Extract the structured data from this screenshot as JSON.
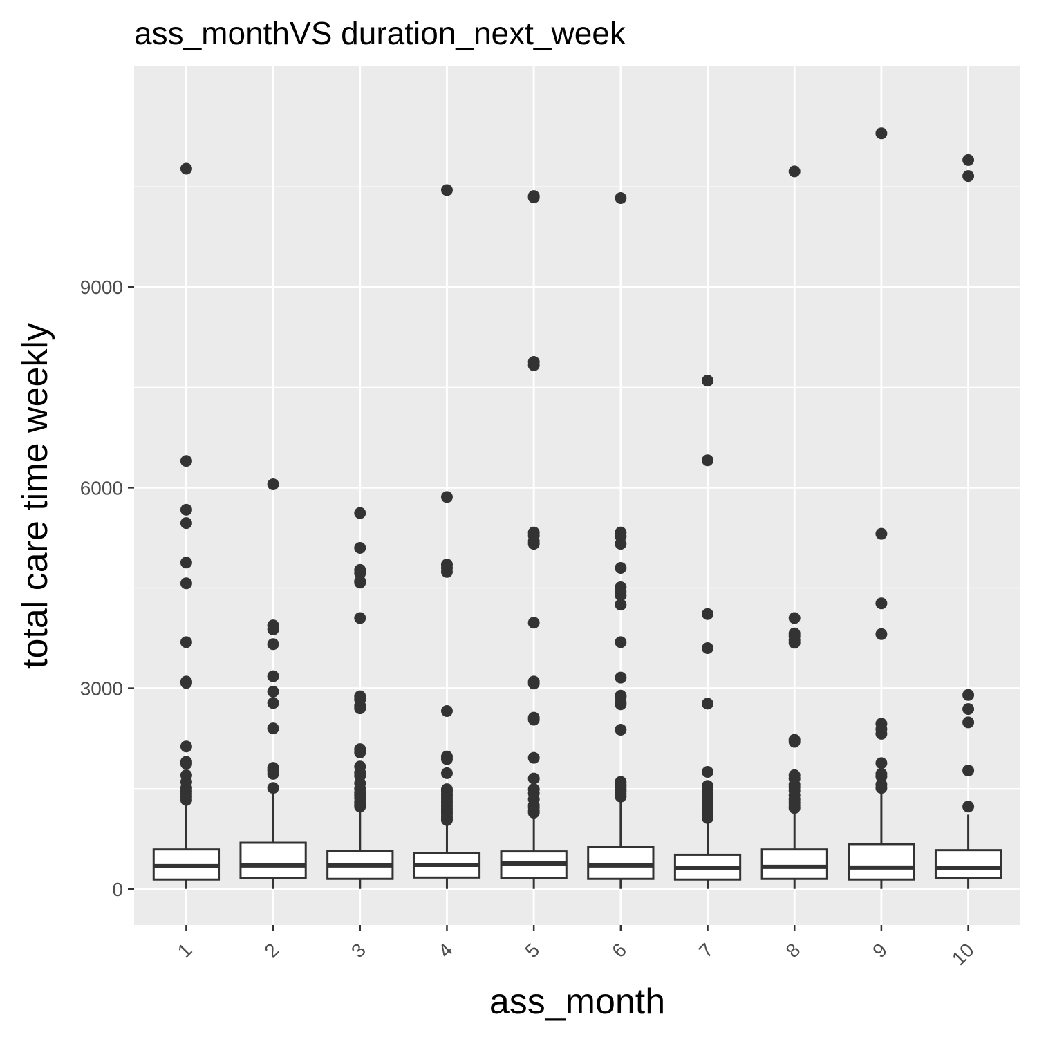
{
  "chart_data": {
    "type": "boxplot",
    "title": "ass_monthVS duration_next_week",
    "xlabel": "ass_month",
    "ylabel": "total care time weekly",
    "ylim": [
      -540,
      12300
    ],
    "yticks": [
      0,
      3000,
      6000,
      9000
    ],
    "ytick_labels": [
      "0",
      "3000",
      "6000",
      "9000"
    ],
    "grid": true,
    "categories": [
      "1",
      "2",
      "3",
      "4",
      "5",
      "6",
      "7",
      "8",
      "9",
      "10"
    ],
    "boxes": [
      {
        "q1": 140,
        "median": 340,
        "q3": 590,
        "whisker_low": 0,
        "whisker_high": 1250,
        "outliers": [
          10770,
          6400,
          5670,
          5470,
          4880,
          4570,
          3690,
          3100,
          3080,
          2130,
          1900,
          1870,
          1700,
          1600,
          1510,
          1460,
          1420,
          1380,
          1330
        ]
      },
      {
        "q1": 160,
        "median": 350,
        "q3": 690,
        "whisker_low": 0,
        "whisker_high": 1460,
        "outliers": [
          6050,
          3940,
          3880,
          3660,
          3180,
          2950,
          2780,
          2400,
          1810,
          1770,
          1720,
          1510
        ]
      },
      {
        "q1": 150,
        "median": 350,
        "q3": 570,
        "whisker_low": 0,
        "whisker_high": 1180,
        "outliers": [
          5620,
          5100,
          4770,
          4720,
          4600,
          4580,
          4050,
          2880,
          2830,
          2740,
          2700,
          2090,
          2040,
          1830,
          1740,
          1690,
          1580,
          1500,
          1440,
          1400,
          1360,
          1300,
          1260,
          1230
        ]
      },
      {
        "q1": 170,
        "median": 360,
        "q3": 530,
        "whisker_low": 0,
        "whisker_high": 1000,
        "outliers": [
          10450,
          5860,
          4850,
          4800,
          4740,
          2660,
          1980,
          1940,
          1730,
          1490,
          1460,
          1420,
          1390,
          1350,
          1310,
          1280,
          1240,
          1200,
          1160,
          1130,
          1090,
          1060,
          1030
        ]
      },
      {
        "q1": 160,
        "median": 380,
        "q3": 560,
        "whisker_low": 0,
        "whisker_high": 1120,
        "outliers": [
          10360,
          10340,
          7880,
          7830,
          5330,
          5280,
          5200,
          5160,
          3980,
          3100,
          3070,
          2560,
          2530,
          1960,
          1650,
          1490,
          1430,
          1340,
          1250,
          1220,
          1170,
          1140
        ]
      },
      {
        "q1": 150,
        "median": 350,
        "q3": 630,
        "whisker_low": 0,
        "whisker_high": 1360,
        "outliers": [
          10330,
          5330,
          5270,
          5160,
          4800,
          4510,
          4440,
          4390,
          4250,
          3690,
          3160,
          2890,
          2870,
          2790,
          2760,
          2380,
          1600,
          1560,
          1530,
          1490,
          1460,
          1420,
          1380
        ]
      },
      {
        "q1": 140,
        "median": 310,
        "q3": 510,
        "whisker_low": 0,
        "whisker_high": 1030,
        "outliers": [
          7600,
          6410,
          4110,
          3600,
          2770,
          1750,
          1540,
          1500,
          1470,
          1430,
          1390,
          1350,
          1310,
          1270,
          1230,
          1200,
          1170,
          1140,
          1110,
          1080,
          1060
        ]
      },
      {
        "q1": 150,
        "median": 330,
        "q3": 590,
        "whisker_low": 0,
        "whisker_high": 1180,
        "outliers": [
          10730,
          4050,
          3820,
          3780,
          3720,
          3680,
          2230,
          2200,
          1700,
          1650,
          1560,
          1520,
          1470,
          1400,
          1340,
          1290,
          1250,
          1210
        ]
      },
      {
        "q1": 140,
        "median": 320,
        "q3": 670,
        "whisker_low": 0,
        "whisker_high": 1450,
        "outliers": [
          11300,
          5310,
          4270,
          3810,
          2470,
          2390,
          2320,
          1880,
          1720,
          1680,
          1560,
          1510
        ]
      },
      {
        "q1": 160,
        "median": 310,
        "q3": 580,
        "whisker_low": 0,
        "whisker_high": 1110,
        "outliers": [
          10900,
          10660,
          2900,
          2690,
          2490,
          1770,
          1230
        ]
      }
    ]
  },
  "colors": {
    "panel_background": "#ebebeb",
    "gridline": "#ffffff",
    "box_fill": "#ffffff",
    "box_stroke": "#333333",
    "outlier": "#333333",
    "tick": "#333333"
  }
}
